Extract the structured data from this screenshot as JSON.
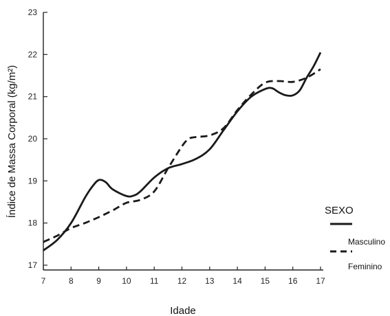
{
  "chart_data": {
    "type": "line",
    "xlabel": "Idade",
    "ylabel": "Índice de Massa Corporal (kg/m²)",
    "xlim": [
      7,
      17
    ],
    "ylim": [
      17,
      23
    ],
    "x_ticks": [
      "7",
      "8",
      "9",
      "10",
      "11",
      "12",
      "13",
      "14",
      "15",
      "16",
      "17"
    ],
    "y_ticks": [
      "17",
      "18",
      "19",
      "20",
      "21",
      "22",
      "23"
    ],
    "legend_title": "SEXO",
    "legend_position": "right",
    "series": [
      {
        "name": "Masculino",
        "style": "solid",
        "color": "#1a1a1a",
        "points": [
          [
            7.0,
            17.35
          ],
          [
            7.5,
            17.6
          ],
          [
            8.0,
            18.0
          ],
          [
            8.5,
            18.6
          ],
          [
            8.75,
            18.85
          ],
          [
            9.0,
            19.02
          ],
          [
            9.25,
            18.97
          ],
          [
            9.5,
            18.8
          ],
          [
            10.0,
            18.64
          ],
          [
            10.25,
            18.65
          ],
          [
            10.5,
            18.75
          ],
          [
            11.0,
            19.08
          ],
          [
            11.5,
            19.3
          ],
          [
            12.0,
            19.4
          ],
          [
            12.5,
            19.52
          ],
          [
            13.0,
            19.75
          ],
          [
            13.5,
            20.2
          ],
          [
            14.0,
            20.65
          ],
          [
            14.5,
            21.0
          ],
          [
            15.0,
            21.18
          ],
          [
            15.25,
            21.2
          ],
          [
            15.5,
            21.1
          ],
          [
            15.75,
            21.03
          ],
          [
            16.0,
            21.03
          ],
          [
            16.25,
            21.15
          ],
          [
            16.5,
            21.45
          ],
          [
            16.75,
            21.72
          ],
          [
            17.0,
            22.05
          ]
        ]
      },
      {
        "name": "Feminino",
        "style": "dashed",
        "color": "#1a1a1a",
        "points": [
          [
            7.0,
            17.55
          ],
          [
            7.5,
            17.7
          ],
          [
            8.0,
            17.88
          ],
          [
            8.5,
            18.0
          ],
          [
            9.0,
            18.14
          ],
          [
            9.5,
            18.3
          ],
          [
            10.0,
            18.48
          ],
          [
            10.5,
            18.55
          ],
          [
            11.0,
            18.75
          ],
          [
            11.5,
            19.3
          ],
          [
            12.0,
            19.82
          ],
          [
            12.25,
            20.0
          ],
          [
            12.5,
            20.04
          ],
          [
            13.0,
            20.08
          ],
          [
            13.5,
            20.25
          ],
          [
            14.0,
            20.68
          ],
          [
            14.5,
            21.05
          ],
          [
            15.0,
            21.33
          ],
          [
            15.5,
            21.37
          ],
          [
            16.0,
            21.35
          ],
          [
            16.5,
            21.45
          ],
          [
            17.0,
            21.65
          ]
        ]
      }
    ]
  }
}
